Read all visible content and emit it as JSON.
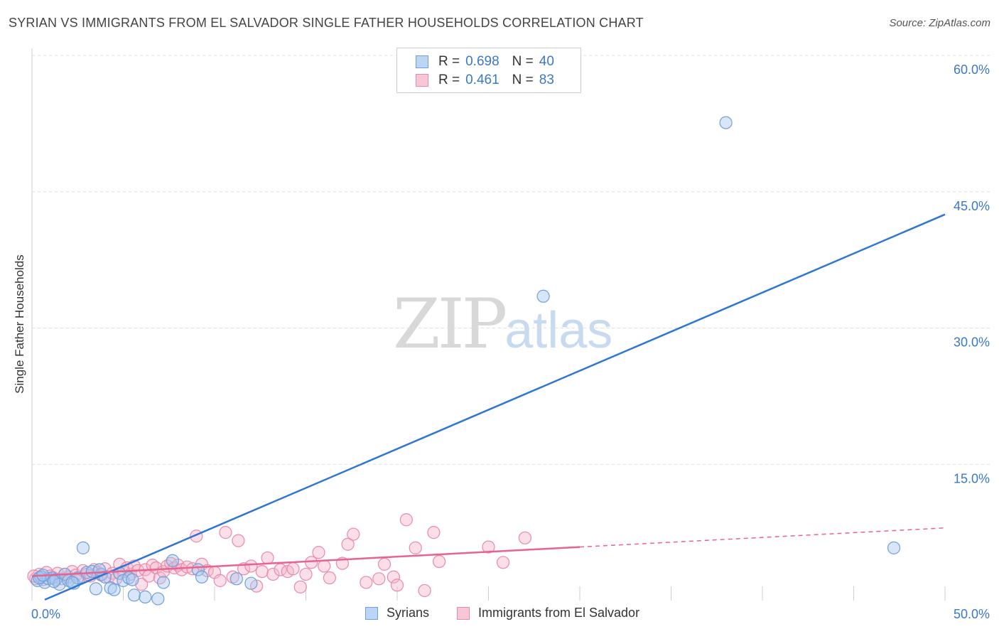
{
  "title": "SYRIAN VS IMMIGRANTS FROM EL SALVADOR SINGLE FATHER HOUSEHOLDS CORRELATION CHART",
  "source": "Source: ZipAtlas.com",
  "watermark": {
    "zip": "ZIP",
    "atlas": "atlas"
  },
  "legend": {
    "rows": [
      {
        "r_label": "R =",
        "r_value": "0.698",
        "n_label": "N =",
        "n_value": "40"
      },
      {
        "r_label": "R =",
        "r_value": "0.461",
        "n_label": "N =",
        "n_value": "83"
      }
    ]
  },
  "bottom_legend": [
    "Syrians",
    "Immigrants from El Salvador"
  ],
  "colors": {
    "blue": "#2f76d2",
    "blue_fill": "#a9c8f0",
    "pink": "#e8638f",
    "pink_fill": "#f4b6cb",
    "grid": "#dddddd",
    "tick_label": "#3a78c9"
  },
  "chart_data": {
    "type": "scatter",
    "title": "SYRIAN VS IMMIGRANTS FROM EL SALVADOR SINGLE FATHER HOUSEHOLDS CORRELATION CHART",
    "xlabel": "",
    "ylabel": "Single Father Households",
    "xlim": [
      0,
      50
    ],
    "ylim": [
      0,
      60
    ],
    "x_tick_labels": [
      "0.0%",
      "50.0%"
    ],
    "y_ticks": [
      15,
      30,
      45,
      60
    ],
    "y_tick_labels": [
      "15.0%",
      "30.0%",
      "45.0%",
      "60.0%"
    ],
    "series": [
      {
        "name": "Syrians",
        "color": "blue",
        "R": 0.698,
        "N": 40,
        "trend": {
          "x": [
            0.7,
            50
          ],
          "y": [
            0.1,
            42.5
          ]
        },
        "points": [
          [
            0.3,
            2.2
          ],
          [
            0.5,
            2.6
          ],
          [
            0.7,
            2.0
          ],
          [
            0.9,
            2.4
          ],
          [
            1.1,
            2.5
          ],
          [
            1.3,
            2.3
          ],
          [
            1.5,
            1.8
          ],
          [
            1.8,
            2.9
          ],
          [
            2.0,
            2.2
          ],
          [
            2.3,
            1.9
          ],
          [
            2.5,
            2.5
          ],
          [
            2.8,
            5.8
          ],
          [
            3.0,
            3.1
          ],
          [
            3.3,
            3.2
          ],
          [
            3.5,
            1.3
          ],
          [
            3.8,
            2.9
          ],
          [
            4.0,
            2.6
          ],
          [
            4.3,
            1.4
          ],
          [
            4.5,
            1.2
          ],
          [
            4.8,
            3.0
          ],
          [
            5.0,
            2.2
          ],
          [
            5.3,
            2.5
          ],
          [
            5.6,
            0.6
          ],
          [
            6.2,
            0.4
          ],
          [
            6.9,
            0.2
          ],
          [
            7.2,
            2.0
          ],
          [
            7.7,
            4.4
          ],
          [
            9.1,
            3.4
          ],
          [
            9.3,
            2.6
          ],
          [
            11.2,
            2.4
          ],
          [
            12.0,
            1.9
          ],
          [
            28.0,
            33.5
          ],
          [
            38.0,
            52.6
          ],
          [
            47.2,
            5.8
          ],
          [
            0.4,
            2.5
          ],
          [
            1.2,
            2.1
          ],
          [
            2.2,
            2.0
          ],
          [
            3.7,
            3.4
          ],
          [
            5.5,
            2.3
          ],
          [
            0.6,
            2.8
          ]
        ]
      },
      {
        "name": "Immigrants from El Salvador",
        "color": "pink",
        "R": 0.461,
        "N": 83,
        "trend": {
          "x": [
            0,
            30
          ],
          "y": [
            2.7,
            5.9
          ]
        },
        "trend_dashed": {
          "x": [
            30,
            50
          ],
          "y": [
            5.9,
            8.0
          ]
        },
        "points": [
          [
            0.2,
            2.4
          ],
          [
            0.4,
            2.9
          ],
          [
            0.6,
            2.3
          ],
          [
            0.8,
            3.1
          ],
          [
            1.0,
            2.7
          ],
          [
            1.2,
            2.5
          ],
          [
            1.4,
            3.0
          ],
          [
            1.6,
            2.4
          ],
          [
            1.8,
            2.9
          ],
          [
            2.0,
            2.6
          ],
          [
            2.2,
            3.2
          ],
          [
            2.4,
            2.8
          ],
          [
            2.6,
            2.5
          ],
          [
            2.8,
            3.3
          ],
          [
            3.0,
            2.9
          ],
          [
            3.2,
            2.7
          ],
          [
            3.4,
            3.4
          ],
          [
            3.6,
            3.1
          ],
          [
            3.8,
            2.8
          ],
          [
            4.0,
            3.5
          ],
          [
            4.2,
            2.6
          ],
          [
            4.4,
            3.0
          ],
          [
            4.6,
            2.4
          ],
          [
            4.8,
            4.0
          ],
          [
            5.0,
            3.2
          ],
          [
            5.2,
            3.6
          ],
          [
            5.4,
            2.9
          ],
          [
            5.6,
            3.8
          ],
          [
            5.8,
            3.3
          ],
          [
            6.0,
            1.8
          ],
          [
            6.2,
            3.4
          ],
          [
            6.4,
            2.7
          ],
          [
            6.6,
            3.9
          ],
          [
            6.8,
            3.6
          ],
          [
            7.0,
            2.5
          ],
          [
            7.2,
            3.2
          ],
          [
            7.4,
            3.8
          ],
          [
            7.6,
            4.1
          ],
          [
            7.8,
            3.6
          ],
          [
            8.0,
            3.9
          ],
          [
            8.2,
            3.4
          ],
          [
            8.5,
            3.7
          ],
          [
            8.8,
            3.5
          ],
          [
            9.0,
            7.1
          ],
          [
            9.3,
            4.0
          ],
          [
            9.6,
            3.3
          ],
          [
            10.0,
            3.1
          ],
          [
            10.3,
            2.2
          ],
          [
            10.6,
            7.5
          ],
          [
            11.0,
            2.6
          ],
          [
            11.3,
            6.6
          ],
          [
            11.6,
            3.5
          ],
          [
            12.0,
            3.8
          ],
          [
            12.3,
            1.6
          ],
          [
            12.6,
            3.2
          ],
          [
            12.9,
            4.7
          ],
          [
            13.2,
            2.9
          ],
          [
            13.6,
            3.4
          ],
          [
            14.0,
            3.2
          ],
          [
            14.3,
            3.5
          ],
          [
            14.7,
            1.5
          ],
          [
            15.0,
            2.9
          ],
          [
            15.3,
            4.2
          ],
          [
            15.7,
            5.3
          ],
          [
            16.0,
            3.8
          ],
          [
            16.3,
            2.5
          ],
          [
            17.0,
            4.1
          ],
          [
            17.3,
            6.2
          ],
          [
            17.6,
            7.3
          ],
          [
            18.3,
            2.0
          ],
          [
            19.0,
            2.4
          ],
          [
            19.3,
            4.0
          ],
          [
            19.8,
            2.6
          ],
          [
            20.0,
            1.7
          ],
          [
            20.5,
            8.9
          ],
          [
            21.0,
            5.8
          ],
          [
            21.5,
            1.1
          ],
          [
            22.0,
            7.5
          ],
          [
            22.3,
            4.3
          ],
          [
            25.0,
            5.9
          ],
          [
            25.8,
            4.2
          ],
          [
            27.0,
            6.9
          ],
          [
            0.1,
            2.7
          ]
        ]
      }
    ]
  }
}
